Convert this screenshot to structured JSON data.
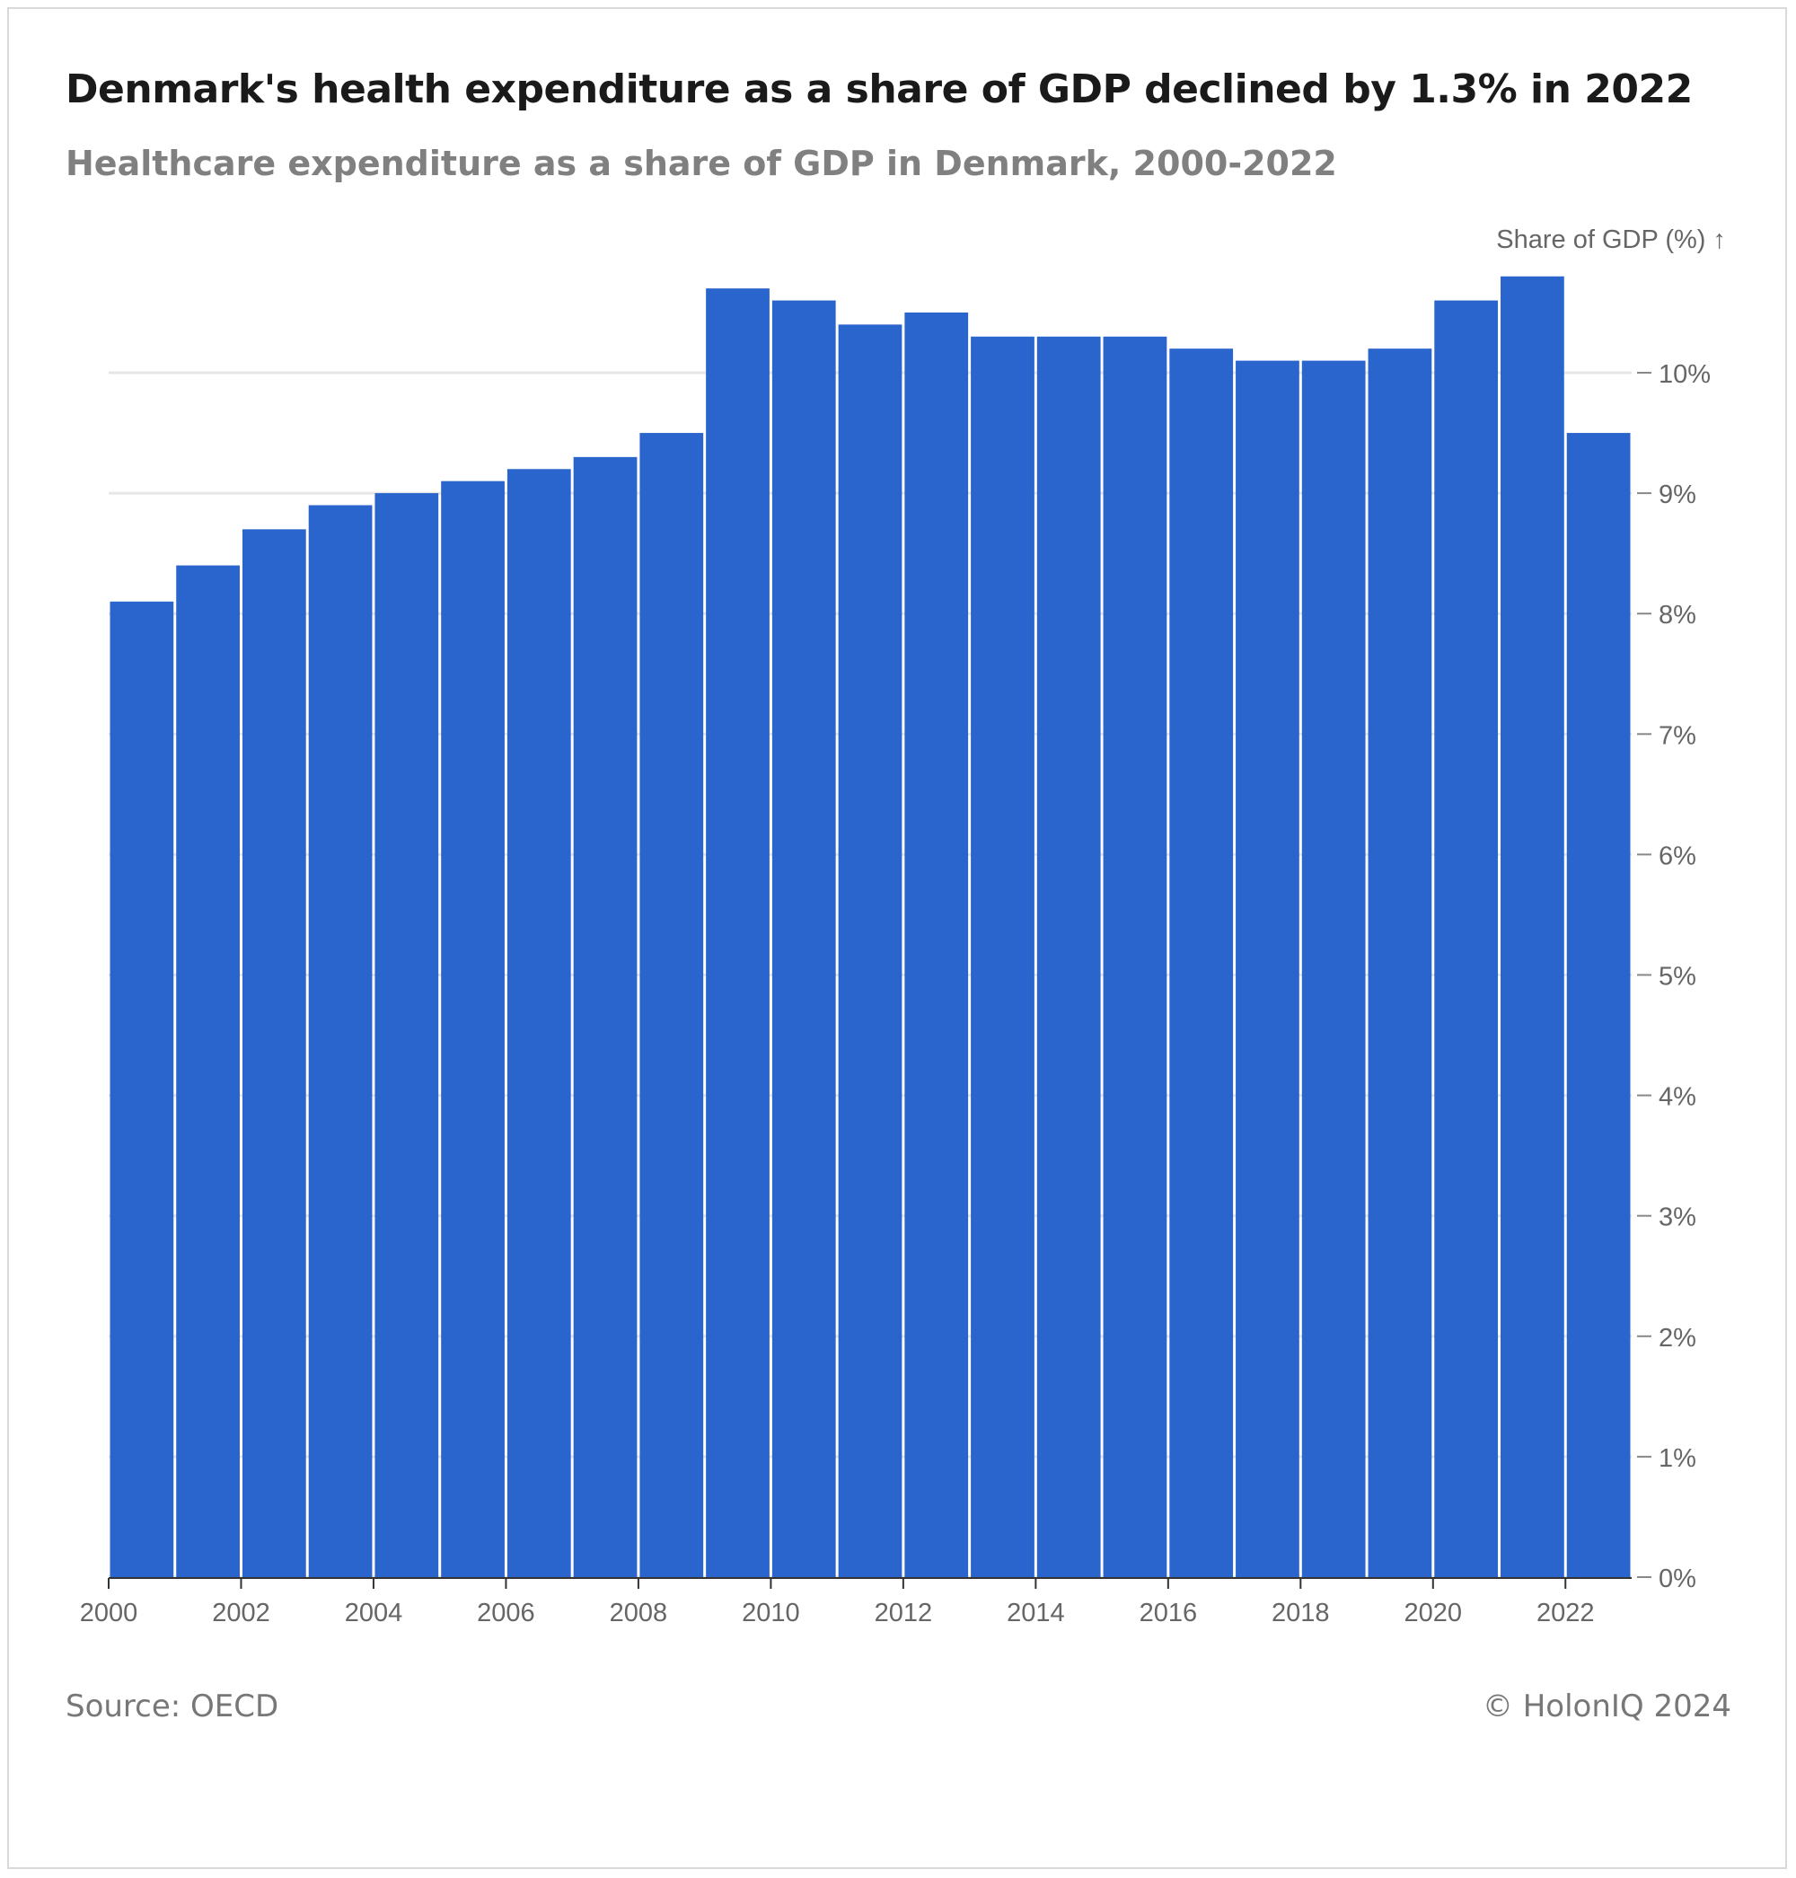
{
  "header": {
    "title": "Denmark's health expenditure as a share of GDP declined by 1.3% in 2022",
    "subtitle": "Healthcare expenditure as a share of GDP in Denmark, 2000-2022"
  },
  "footer": {
    "source": "Source: OECD",
    "copyright": "© HolonIQ 2024"
  },
  "chart_data": {
    "type": "bar",
    "title": "Denmark's health expenditure as a share of GDP declined by 1.3% in 2022",
    "subtitle": "Healthcare expenditure as a share of GDP in Denmark, 2000-2022",
    "ylabel": "Share of GDP (%) ↑",
    "xlabel": "",
    "categories": [
      "2000",
      "2001",
      "2002",
      "2003",
      "2004",
      "2005",
      "2006",
      "2007",
      "2008",
      "2009",
      "2010",
      "2011",
      "2012",
      "2013",
      "2014",
      "2015",
      "2016",
      "2017",
      "2018",
      "2019",
      "2020",
      "2021",
      "2022"
    ],
    "values": [
      8.1,
      8.4,
      8.7,
      8.9,
      9.0,
      9.1,
      9.2,
      9.3,
      9.5,
      10.7,
      10.6,
      10.4,
      10.5,
      10.3,
      10.3,
      10.3,
      10.2,
      10.1,
      10.1,
      10.2,
      10.6,
      10.8,
      9.5
    ],
    "x_tick_labels": [
      "2000",
      "2002",
      "2004",
      "2006",
      "2008",
      "2010",
      "2012",
      "2014",
      "2016",
      "2018",
      "2020",
      "2022"
    ],
    "y_ticks": [
      0,
      1,
      2,
      3,
      4,
      5,
      6,
      7,
      8,
      9,
      10
    ],
    "y_tick_labels": [
      "0%",
      "1%",
      "2%",
      "3%",
      "4%",
      "5%",
      "6%",
      "7%",
      "8%",
      "9%",
      "10%"
    ],
    "ylim": [
      0,
      11.3
    ],
    "y_axis_position": "right",
    "grid": true,
    "bar_color": "#2a64cd",
    "grid_color": "#e6e6e6",
    "axis_text_color": "#666666"
  }
}
